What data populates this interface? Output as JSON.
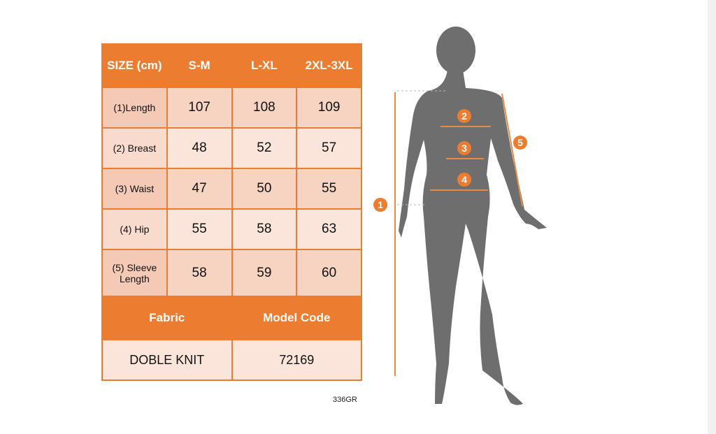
{
  "table": {
    "header": [
      "SIZE (cm)",
      "S-M",
      "L-XL",
      "2XL-3XL"
    ],
    "rows": [
      {
        "label": "(1)Length",
        "values": [
          "107",
          "108",
          "109"
        ]
      },
      {
        "label": "(2) Breast",
        "values": [
          "48",
          "52",
          "57"
        ]
      },
      {
        "label": "(3) Waist",
        "values": [
          "47",
          "50",
          "55"
        ]
      },
      {
        "label": "(4) Hip",
        "values": [
          "55",
          "58",
          "63"
        ]
      },
      {
        "label": "(5) Sleeve Length",
        "values": [
          "58",
          "59",
          "60"
        ]
      }
    ],
    "footer_header": [
      "Fabric",
      "Model Code"
    ],
    "footer_values": [
      "DOBLE KNIT",
      "72169"
    ]
  },
  "code": "336GR",
  "figure": {
    "markers": [
      "1",
      "2",
      "3",
      "4",
      "5"
    ]
  },
  "colors": {
    "accent": "#ec7c30",
    "silhouette": "#6e6e6e",
    "row_dark": "#f7d3c1",
    "row_light": "#fbe5da"
  }
}
